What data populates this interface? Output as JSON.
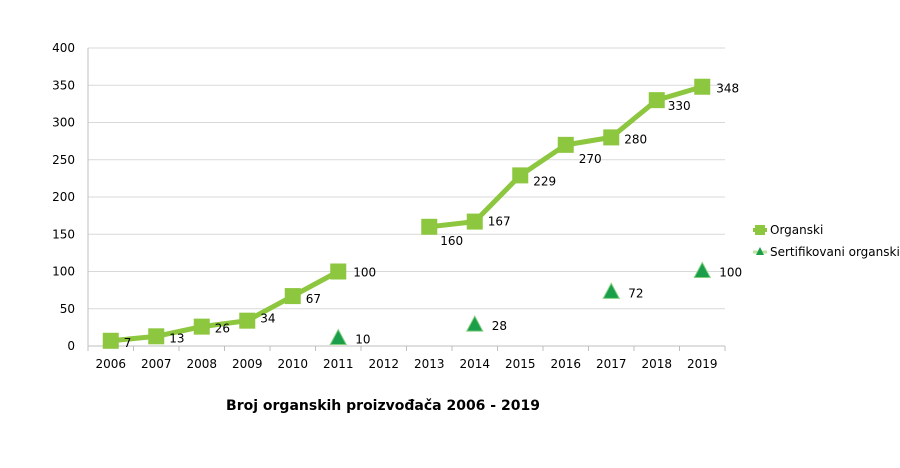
{
  "chart_data": {
    "type": "line",
    "title": "Broj organskih proizvođača 2006 - 2019",
    "xlabel": "",
    "ylabel": "",
    "ylim": [
      0,
      400
    ],
    "yticks": [
      "0",
      "50",
      "100",
      "150",
      "200",
      "250",
      "300",
      "350",
      "400"
    ],
    "categories": [
      "2006",
      "2007",
      "2008",
      "2009",
      "2010",
      "2011",
      "2012",
      "2013",
      "2014",
      "2015",
      "2016",
      "2017",
      "2018",
      "2019"
    ],
    "grid": true,
    "legend_position": "right",
    "series": [
      {
        "name": "Organski",
        "marker": "square",
        "color": "#8dc63f",
        "values": [
          7,
          13,
          26,
          34,
          67,
          100,
          null,
          160,
          167,
          229,
          270,
          280,
          330,
          348
        ],
        "labels": [
          "7",
          "13",
          "26",
          "34",
          "67",
          "100",
          "",
          "160",
          "167",
          "229",
          "270",
          "280",
          "330",
          "348"
        ]
      },
      {
        "name": "Sertifikovani organski",
        "marker": "triangle",
        "color": "#1a9e4a",
        "values": [
          null,
          null,
          null,
          null,
          null,
          10,
          null,
          null,
          28,
          null,
          null,
          72,
          null,
          100
        ],
        "labels": [
          "",
          "",
          "",
          "",
          "",
          "10",
          "",
          "",
          "28",
          "",
          "",
          "72",
          "",
          "100"
        ]
      }
    ]
  }
}
